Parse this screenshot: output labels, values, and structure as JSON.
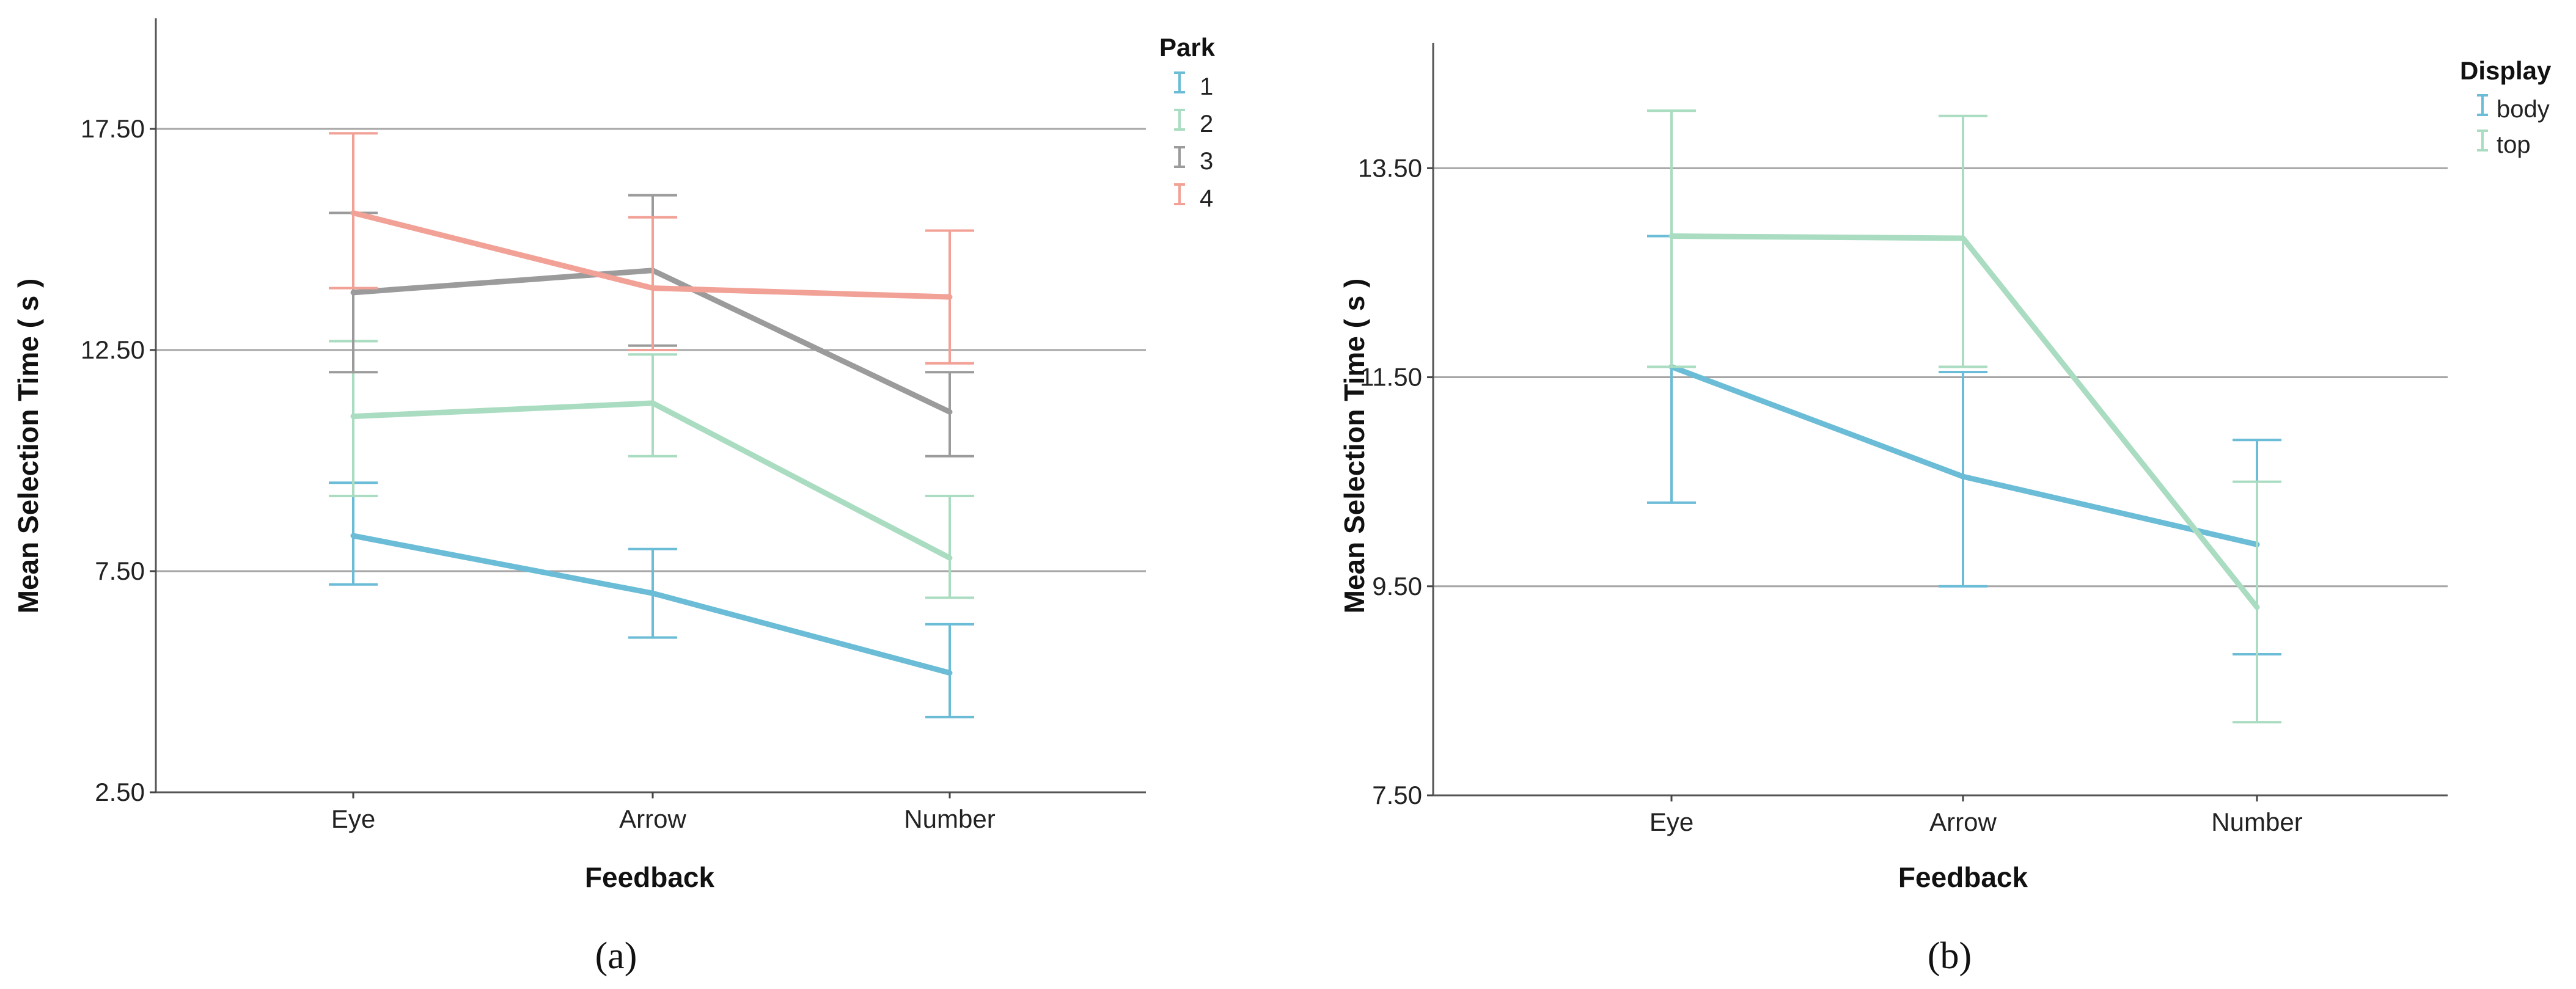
{
  "chart_data": [
    {
      "type": "line",
      "caption": "(a)",
      "categories": [
        "Eye",
        "Arrow",
        "Number"
      ],
      "xlabel": "Feedback",
      "ylabel": "Mean Selection Time ( s )",
      "ylim": [
        2.5,
        20.0
      ],
      "yticks": [
        "2.50",
        "7.50",
        "12.50",
        "17.50"
      ],
      "grid": true,
      "legend": {
        "title": "Park",
        "position": "top-right"
      },
      "series": [
        {
          "name": "1",
          "color": "#6bbcd6",
          "values": [
            8.3,
            7.0,
            5.2
          ],
          "err_low": [
            7.2,
            6.0,
            4.2
          ],
          "err_high": [
            9.5,
            8.0,
            6.3
          ]
        },
        {
          "name": "2",
          "color": "#a9dcc0",
          "values": [
            11.0,
            11.3,
            7.8
          ],
          "err_low": [
            9.2,
            10.1,
            6.9
          ],
          "err_high": [
            12.7,
            12.4,
            9.2
          ]
        },
        {
          "name": "3",
          "color": "#9b9b9b",
          "values": [
            13.8,
            14.3,
            11.1
          ],
          "err_low": [
            12.0,
            12.6,
            10.1
          ],
          "err_high": [
            15.6,
            16.0,
            12.0
          ]
        },
        {
          "name": "4",
          "color": "#f2a196",
          "values": [
            15.6,
            13.9,
            13.7
          ],
          "err_low": [
            13.9,
            12.5,
            12.2
          ],
          "err_high": [
            17.4,
            15.5,
            15.2
          ]
        }
      ]
    },
    {
      "type": "line",
      "caption": "(b)",
      "categories": [
        "Eye",
        "Arrow",
        "Number"
      ],
      "xlabel": "Feedback",
      "ylabel": "Mean Selection Time ( s )",
      "ylim": [
        7.5,
        14.7
      ],
      "yticks": [
        "7.50",
        "9.50",
        "11.50",
        "13.50"
      ],
      "grid": true,
      "legend": {
        "title": "Display",
        "position": "top-right"
      },
      "series": [
        {
          "name": "body",
          "color": "#6bbcd6",
          "values": [
            11.6,
            10.55,
            9.9
          ],
          "err_low": [
            10.3,
            9.5,
            8.85
          ],
          "err_high": [
            12.85,
            11.55,
            10.9
          ]
        },
        {
          "name": "top",
          "color": "#a9dcc0",
          "values": [
            12.85,
            12.83,
            9.3
          ],
          "err_low": [
            11.6,
            11.6,
            8.2
          ],
          "err_high": [
            14.05,
            14.0,
            10.5
          ]
        }
      ]
    }
  ]
}
